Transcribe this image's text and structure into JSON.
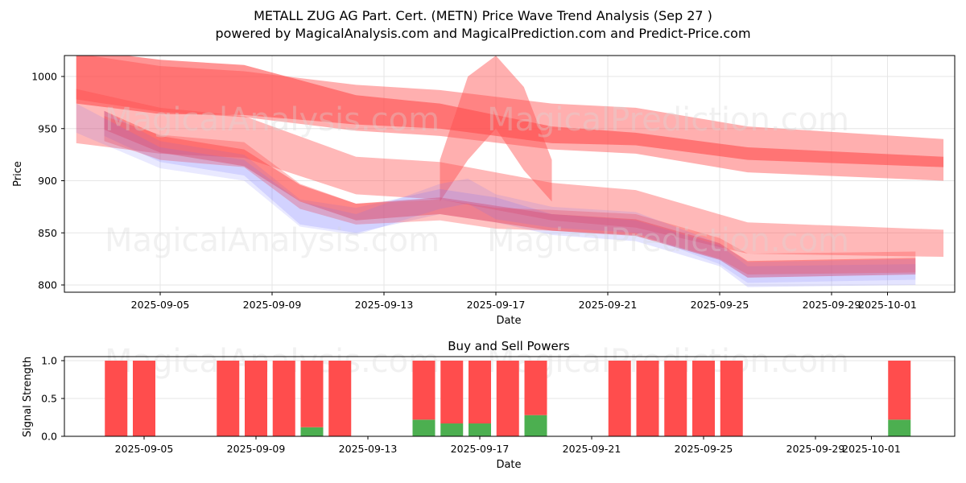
{
  "title": "METALL ZUG AG Part. Cert. (METN) Price Wave Trend Analysis (Sep 27 )",
  "subtitle": "powered by MagicalAnalysis.com and MagicalPrediction.com and Predict-Price.com",
  "watermarks": [
    "MagicalAnalysis.com",
    "MagicalPrediction.com"
  ],
  "chart_data": [
    {
      "type": "area",
      "title": "",
      "xlabel": "Date",
      "ylabel": "Price",
      "ylim": [
        793,
        1020
      ],
      "xlim": [
        "2025-09-01T15:00",
        "2025-10-03T18:00"
      ],
      "yticks": [
        800,
        850,
        900,
        950,
        1000
      ],
      "xticks": [
        "2025-09-05",
        "2025-09-09",
        "2025-09-13",
        "2025-09-17",
        "2025-09-21",
        "2025-09-25",
        "2025-09-29",
        "2025-10-01"
      ],
      "grid": true,
      "colors": {
        "sell_band": "#ff4d4d",
        "buy_band": "#6b6bff"
      },
      "bands": [
        {
          "name": "upper-wide",
          "color": "red",
          "opacity": 0.45,
          "x": [
            "2025-09-02",
            "2025-09-05",
            "2025-09-08",
            "2025-09-12",
            "2025-09-15",
            "2025-09-19",
            "2025-09-22",
            "2025-09-26",
            "2025-10-03"
          ],
          "center": [
            1000,
            988,
            983,
            970,
            965,
            952,
            948,
            930,
            920
          ],
          "half": [
            22,
            22,
            22,
            22,
            22,
            22,
            22,
            22,
            20
          ]
        },
        {
          "name": "upper-core",
          "color": "red",
          "opacity": 0.6,
          "x": [
            "2025-09-02",
            "2025-09-05",
            "2025-09-08",
            "2025-09-12",
            "2025-09-15",
            "2025-09-19",
            "2025-09-22",
            "2025-09-26",
            "2025-10-03"
          ],
          "center": [
            1000,
            990,
            987,
            968,
            962,
            944,
            940,
            926,
            918
          ],
          "half": [
            26,
            26,
            24,
            14,
            12,
            8,
            6,
            6,
            5
          ]
        },
        {
          "name": "middle",
          "color": "red",
          "opacity": 0.4,
          "x": [
            "2025-09-02",
            "2025-09-05",
            "2025-09-08",
            "2025-09-12",
            "2025-09-15",
            "2025-09-19",
            "2025-09-22",
            "2025-09-26",
            "2025-10-03"
          ],
          "center": [
            962,
            948,
            942,
            905,
            900,
            880,
            873,
            845,
            840
          ],
          "half": [
            26,
            22,
            20,
            18,
            18,
            18,
            18,
            15,
            13
          ]
        },
        {
          "name": "spike",
          "color": "red",
          "opacity": 0.45,
          "x": [
            "2025-09-15",
            "2025-09-16",
            "2025-09-17",
            "2025-09-18",
            "2025-09-19"
          ],
          "center": [
            900,
            960,
            985,
            950,
            900
          ],
          "half": [
            20,
            40,
            35,
            40,
            20
          ]
        },
        {
          "name": "price-wave-1",
          "color": "red",
          "opacity": 0.5,
          "x": [
            "2025-09-03",
            "2025-09-05",
            "2025-09-08",
            "2025-09-10",
            "2025-09-12",
            "2025-09-15",
            "2025-09-17",
            "2025-09-19",
            "2025-09-22",
            "2025-09-25",
            "2025-09-26",
            "2025-10-02"
          ],
          "center": [
            958,
            935,
            922,
            888,
            870,
            876,
            868,
            860,
            855,
            832,
            815,
            818
          ],
          "half": [
            9,
            8,
            8,
            8,
            8,
            8,
            8,
            8,
            8,
            8,
            8,
            8
          ]
        },
        {
          "name": "price-wave-2",
          "color": "blue",
          "opacity": 0.18,
          "x": [
            "2025-09-03",
            "2025-09-05",
            "2025-09-08",
            "2025-09-10",
            "2025-09-12",
            "2025-09-15",
            "2025-09-17",
            "2025-09-19",
            "2025-09-22",
            "2025-09-25",
            "2025-09-26",
            "2025-10-02"
          ],
          "center": [
            955,
            928,
            915,
            870,
            862,
            880,
            872,
            858,
            852,
            828,
            808,
            810
          ],
          "half": [
            12,
            10,
            10,
            12,
            12,
            12,
            12,
            10,
            10,
            10,
            10,
            10
          ]
        },
        {
          "name": "price-wave-3",
          "color": "red",
          "opacity": 0.35,
          "x": [
            "2025-09-03",
            "2025-09-05",
            "2025-09-08",
            "2025-09-10",
            "2025-09-12",
            "2025-09-15",
            "2025-09-17",
            "2025-09-19",
            "2025-09-22",
            "2025-09-25",
            "2025-09-26",
            "2025-10-02"
          ],
          "center": [
            950,
            932,
            925,
            885,
            868,
            872,
            864,
            862,
            858,
            835,
            820,
            822
          ],
          "half": [
            12,
            12,
            12,
            12,
            10,
            10,
            10,
            10,
            10,
            10,
            10,
            10
          ]
        },
        {
          "name": "price-wave-4",
          "color": "blue",
          "opacity": 0.15,
          "x": [
            "2025-09-02",
            "2025-09-05",
            "2025-09-08",
            "2025-09-10",
            "2025-09-12",
            "2025-09-15",
            "2025-09-16",
            "2025-09-17",
            "2025-09-19",
            "2025-09-22",
            "2025-09-25",
            "2025-09-26",
            "2025-10-02"
          ],
          "center": [
            960,
            922,
            910,
            868,
            858,
            885,
            890,
            875,
            865,
            860,
            830,
            812,
            815
          ],
          "half": [
            14,
            10,
            10,
            12,
            10,
            12,
            12,
            12,
            10,
            10,
            10,
            10,
            10
          ]
        }
      ]
    },
    {
      "type": "bar",
      "title": "Buy and Sell Powers",
      "xlabel": "Date",
      "ylabel": "Signal Strength",
      "ylim": [
        0,
        1.05
      ],
      "yticks": [
        "0.0",
        "0.5",
        "1.0"
      ],
      "xticks": [
        "2025-09-05",
        "2025-09-09",
        "2025-09-13",
        "2025-09-17",
        "2025-09-21",
        "2025-09-25",
        "2025-09-29",
        "2025-10-01"
      ],
      "grid": true,
      "colors": {
        "buy": "#4caf50",
        "sell": "#ff4d4d"
      },
      "categories": [
        "2025-09-04",
        "2025-09-05",
        "2025-09-08",
        "2025-09-09",
        "2025-09-10",
        "2025-09-11",
        "2025-09-12",
        "2025-09-15",
        "2025-09-16",
        "2025-09-17",
        "2025-09-18",
        "2025-09-19",
        "2025-09-22",
        "2025-09-23",
        "2025-09-24",
        "2025-09-25",
        "2025-09-26",
        "2025-10-02"
      ],
      "series": [
        {
          "name": "Buy",
          "values": [
            0,
            0,
            0,
            0,
            0,
            0.12,
            0,
            0.22,
            0.17,
            0.17,
            0,
            0.28,
            0,
            0,
            0,
            0,
            0,
            0.22
          ]
        },
        {
          "name": "Sell",
          "values": [
            1,
            1,
            1,
            1,
            1,
            0.88,
            1,
            0.78,
            0.83,
            0.83,
            1,
            0.72,
            1,
            1,
            1,
            1,
            1,
            0.78
          ]
        }
      ]
    }
  ]
}
